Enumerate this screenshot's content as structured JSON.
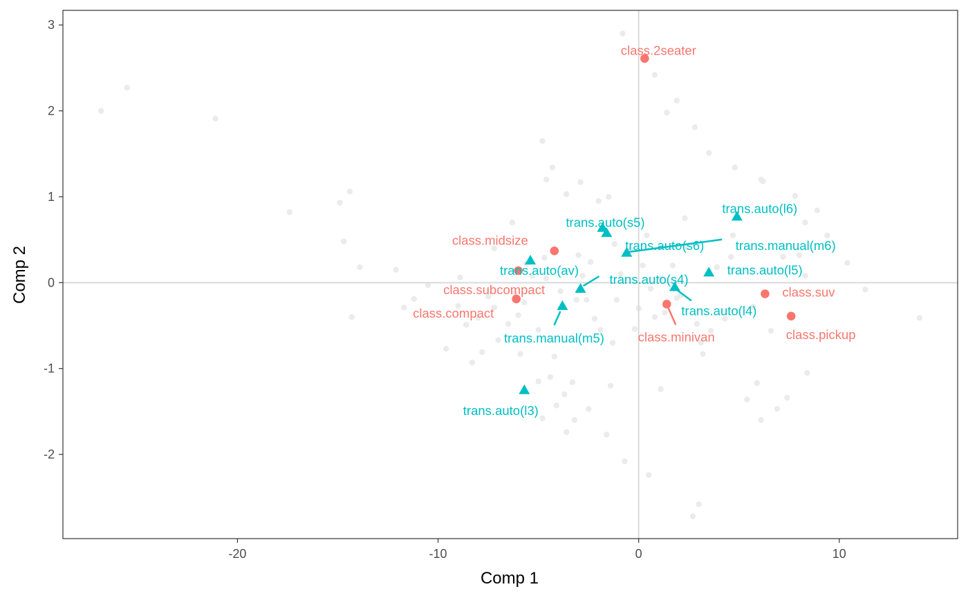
{
  "chart_data": {
    "type": "scatter",
    "xlabel": "Comp 1",
    "ylabel": "Comp 2",
    "xlim": [
      -28.7,
      15.9
    ],
    "ylim": [
      -2.98,
      3.17
    ],
    "x_ticks": [
      -20,
      -10,
      0,
      10
    ],
    "y_ticks": [
      -2,
      -1,
      0,
      1,
      2,
      3
    ],
    "x_tick_labels": [
      "-20",
      "-10",
      "0",
      "10"
    ],
    "y_tick_labels": [
      "-2",
      "-1",
      "0",
      "1",
      "2",
      "3"
    ],
    "grid": false,
    "reference_lines": {
      "x": 0,
      "y": 0
    },
    "colors": {
      "class": "#F8766D",
      "trans": "#00BFC4",
      "background_points": "#EBEBEB",
      "reference_line": "#D9D9D9",
      "panel_border": "#333333"
    },
    "background_points": [
      [
        -26.8,
        2.0
      ],
      [
        -25.5,
        2.27
      ],
      [
        -21.1,
        1.91
      ],
      [
        -17.4,
        0.82
      ],
      [
        -14.9,
        0.93
      ],
      [
        -14.4,
        1.06
      ],
      [
        -14.7,
        0.48
      ],
      [
        -13.9,
        0.18
      ],
      [
        -14.3,
        -0.4
      ],
      [
        -12.1,
        0.15
      ],
      [
        -11.7,
        -0.29
      ],
      [
        -11.2,
        -0.19
      ],
      [
        -10.5,
        -0.03
      ],
      [
        -9.6,
        -0.77
      ],
      [
        -8.9,
        0.06
      ],
      [
        -8.6,
        -0.49
      ],
      [
        -8.3,
        -0.93
      ],
      [
        -8.0,
        -0.41
      ],
      [
        -7.8,
        -0.81
      ],
      [
        -7.5,
        -0.16
      ],
      [
        -7.2,
        -0.29
      ],
      [
        -7.0,
        -0.67
      ],
      [
        -6.5,
        -0.48
      ],
      [
        -6.2,
        -0.12
      ],
      [
        -6.0,
        -0.38
      ],
      [
        -5.9,
        -0.83
      ],
      [
        -5.7,
        -0.23
      ],
      [
        -5.6,
        0.22
      ],
      [
        -5.3,
        0.08
      ],
      [
        -5.0,
        -0.55
      ],
      [
        -4.8,
        -1.58
      ],
      [
        -4.7,
        0.29
      ],
      [
        -4.6,
        0.05
      ],
      [
        -4.3,
        1.34
      ],
      [
        -4.2,
        -0.86
      ],
      [
        -4.1,
        -1.43
      ],
      [
        -3.9,
        -0.1
      ],
      [
        -3.7,
        -1.3
      ],
      [
        -3.6,
        1.03
      ],
      [
        -3.3,
        -1.16
      ],
      [
        -3.2,
        -1.6
      ],
      [
        -3.0,
        0.32
      ],
      [
        -2.8,
        0.08
      ],
      [
        -2.6,
        -0.2
      ],
      [
        -2.5,
        -1.47
      ],
      [
        -2.4,
        0.24
      ],
      [
        -2.2,
        -0.42
      ],
      [
        -1.9,
        -0.55
      ],
      [
        -1.6,
        -1.77
      ],
      [
        -1.4,
        -1.2
      ],
      [
        -1.2,
        0.45
      ],
      [
        -1.1,
        -0.2
      ],
      [
        -0.9,
        0.1
      ],
      [
        -0.7,
        -2.08
      ],
      [
        -0.4,
        0.39
      ],
      [
        -0.2,
        -0.54
      ],
      [
        0.0,
        -0.3
      ],
      [
        0.2,
        0.2
      ],
      [
        0.4,
        0.55
      ],
      [
        0.5,
        -2.24
      ],
      [
        0.8,
        -0.4
      ],
      [
        1.1,
        0.05
      ],
      [
        1.3,
        -0.35
      ],
      [
        1.7,
        0.2
      ],
      [
        1.9,
        2.12
      ],
      [
        2.1,
        -0.15
      ],
      [
        2.4,
        0.42
      ],
      [
        2.7,
        -2.72
      ],
      [
        2.8,
        1.81
      ],
      [
        3.1,
        -0.7
      ],
      [
        3.2,
        -0.83
      ],
      [
        3.5,
        1.51
      ],
      [
        3.6,
        -0.56
      ],
      [
        3.9,
        0.18
      ],
      [
        4.3,
        -0.42
      ],
      [
        4.7,
        0.55
      ],
      [
        4.8,
        1.34
      ],
      [
        5.4,
        -1.36
      ],
      [
        5.7,
        -0.28
      ],
      [
        5.9,
        -1.17
      ],
      [
        6.2,
        1.18
      ],
      [
        6.6,
        -0.56
      ],
      [
        6.9,
        -1.47
      ],
      [
        7.2,
        0.3
      ],
      [
        7.4,
        -1.34
      ],
      [
        7.8,
        1.01
      ],
      [
        8.0,
        0.32
      ],
      [
        8.3,
        0.7
      ],
      [
        8.4,
        -1.05
      ],
      [
        8.9,
        0.84
      ],
      [
        9.4,
        0.55
      ],
      [
        10.4,
        0.23
      ],
      [
        11.3,
        -0.08
      ],
      [
        14.0,
        -0.41
      ],
      [
        -4.8,
        1.65
      ],
      [
        -4.6,
        1.2
      ],
      [
        -2.9,
        1.17
      ],
      [
        -1.5,
        1.0
      ],
      [
        -0.8,
        2.9
      ],
      [
        1.4,
        1.98
      ],
      [
        1.9,
        -0.18
      ],
      [
        2.3,
        0.75
      ],
      [
        0.8,
        2.42
      ],
      [
        -1.3,
        -0.7
      ],
      [
        -4.4,
        -1.1
      ],
      [
        -3.1,
        -0.2
      ],
      [
        6.1,
        1.2
      ],
      [
        4.6,
        0.3
      ],
      [
        2.9,
        -0.48
      ],
      [
        1.1,
        -1.24
      ],
      [
        -6.3,
        0.7
      ],
      [
        -7.2,
        0.4
      ],
      [
        -2.0,
        0.95
      ],
      [
        3.0,
        -2.58
      ],
      [
        0.6,
        -0.07
      ],
      [
        -5.0,
        -1.15
      ],
      [
        6.1,
        -1.6
      ],
      [
        -3.6,
        -1.74
      ],
      [
        8.3,
        0.08
      ],
      [
        -9.0,
        -0.27
      ]
    ],
    "series": [
      {
        "name": "class",
        "marker": "circle",
        "points": [
          {
            "label": "class.2seater",
            "x": 0.3,
            "y": 2.61
          },
          {
            "label": "class.midsize",
            "x": -4.2,
            "y": 0.37
          },
          {
            "label": "class.subcompact",
            "x": -6.0,
            "y": 0.14
          },
          {
            "label": "class.compact",
            "x": -6.1,
            "y": -0.19
          },
          {
            "label": "class.minivan",
            "x": 1.4,
            "y": -0.25
          },
          {
            "label": "class.suv",
            "x": 6.3,
            "y": -0.13
          },
          {
            "label": "class.pickup",
            "x": 7.6,
            "y": -0.39
          }
        ]
      },
      {
        "name": "trans",
        "marker": "triangle",
        "points": [
          {
            "label": "trans.auto(s5)",
            "x": -1.8,
            "y": 0.64
          },
          {
            "label": "trans.auto(s6)",
            "x": -1.6,
            "y": 0.58
          },
          {
            "label": "trans.manual(m6)",
            "x": -0.6,
            "y": 0.35
          },
          {
            "label": "trans.auto(l6)",
            "x": 4.9,
            "y": 0.77
          },
          {
            "label": "trans.auto(av)",
            "x": -5.4,
            "y": 0.26
          },
          {
            "label": "trans.auto(l5)",
            "x": 3.5,
            "y": 0.12
          },
          {
            "label": "trans.auto(s4)",
            "x": -2.9,
            "y": -0.07
          },
          {
            "label": "trans.auto(l4)",
            "x": 1.8,
            "y": -0.05
          },
          {
            "label": "trans.manual(m5)",
            "x": -3.8,
            "y": -0.27
          },
          {
            "label": "trans.auto(l3)",
            "x": -5.7,
            "y": -1.25
          }
        ]
      }
    ]
  }
}
